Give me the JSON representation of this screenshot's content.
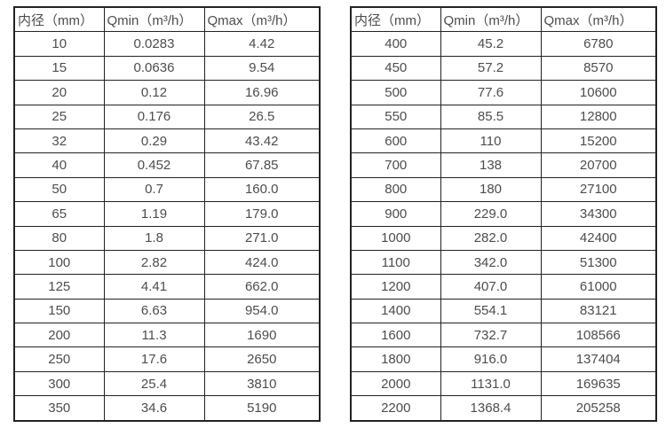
{
  "page": {
    "background": "#ffffff",
    "text_color": "#4d4d4d",
    "border_color": "#222222"
  },
  "tables": [
    {
      "name": "flow-spec-table-small-diameters",
      "headers": [
        "内径（mm）",
        "Qmin（m³/h）",
        "Qmax（m³/h）"
      ],
      "rows": [
        [
          "10",
          "0.0283",
          "4.42"
        ],
        [
          "15",
          "0.0636",
          "9.54"
        ],
        [
          "20",
          "0.12",
          "16.96"
        ],
        [
          "25",
          "0.176",
          "26.5"
        ],
        [
          "32",
          "0.29",
          "43.42"
        ],
        [
          "40",
          "0.452",
          "67.85"
        ],
        [
          "50",
          "0.7",
          "160.0"
        ],
        [
          "65",
          "1.19",
          "179.0"
        ],
        [
          "80",
          "1.8",
          "271.0"
        ],
        [
          "100",
          "2.82",
          "424.0"
        ],
        [
          "125",
          "4.41",
          "662.0"
        ],
        [
          "150",
          "6.63",
          "954.0"
        ],
        [
          "200",
          "11.3",
          "1690"
        ],
        [
          "250",
          "17.6",
          "2650"
        ],
        [
          "300",
          "25.4",
          "3810"
        ],
        [
          "350",
          "34.6",
          "5190"
        ]
      ]
    },
    {
      "name": "flow-spec-table-large-diameters",
      "headers": [
        "内径（mm）",
        "Qmin（m³/h）",
        "Qmax（m³/h）"
      ],
      "rows": [
        [
          "400",
          "45.2",
          "6780"
        ],
        [
          "450",
          "57.2",
          "8570"
        ],
        [
          "500",
          "77.6",
          "10600"
        ],
        [
          "550",
          "85.5",
          "12800"
        ],
        [
          "600",
          "110",
          "15200"
        ],
        [
          "700",
          "138",
          "20700"
        ],
        [
          "800",
          "180",
          "27100"
        ],
        [
          "900",
          "229.0",
          "34300"
        ],
        [
          "1000",
          "282.0",
          "42400"
        ],
        [
          "1100",
          "342.0",
          "51300"
        ],
        [
          "1200",
          "407.0",
          "61000"
        ],
        [
          "1400",
          "554.1",
          "83121"
        ],
        [
          "1600",
          "732.7",
          "108566"
        ],
        [
          "1800",
          "916.0",
          "137404"
        ],
        [
          "2000",
          "1131.0",
          "169635"
        ],
        [
          "2200",
          "1368.4",
          "205258"
        ]
      ]
    }
  ],
  "chart_data": [
    {
      "type": "table",
      "title": "Flow range by inner diameter (10–350 mm)",
      "columns": [
        "内径（mm）",
        "Qmin（m³/h）",
        "Qmax（m³/h）"
      ],
      "rows": [
        [
          10,
          0.0283,
          4.42
        ],
        [
          15,
          0.0636,
          9.54
        ],
        [
          20,
          0.12,
          16.96
        ],
        [
          25,
          0.176,
          26.5
        ],
        [
          32,
          0.29,
          43.42
        ],
        [
          40,
          0.452,
          67.85
        ],
        [
          50,
          0.7,
          160.0
        ],
        [
          65,
          1.19,
          179.0
        ],
        [
          80,
          1.8,
          271.0
        ],
        [
          100,
          2.82,
          424.0
        ],
        [
          125,
          4.41,
          662.0
        ],
        [
          150,
          6.63,
          954.0
        ],
        [
          200,
          11.3,
          1690
        ],
        [
          250,
          17.6,
          2650
        ],
        [
          300,
          25.4,
          3810
        ],
        [
          350,
          34.6,
          5190
        ]
      ]
    },
    {
      "type": "table",
      "title": "Flow range by inner diameter (400–2200 mm)",
      "columns": [
        "内径（mm）",
        "Qmin（m³/h）",
        "Qmax（m³/h）"
      ],
      "rows": [
        [
          400,
          45.2,
          6780
        ],
        [
          450,
          57.2,
          8570
        ],
        [
          500,
          77.6,
          10600
        ],
        [
          550,
          85.5,
          12800
        ],
        [
          600,
          110,
          15200
        ],
        [
          700,
          138,
          20700
        ],
        [
          800,
          180,
          27100
        ],
        [
          900,
          229.0,
          34300
        ],
        [
          1000,
          282.0,
          42400
        ],
        [
          1100,
          342.0,
          51300
        ],
        [
          1200,
          407.0,
          61000
        ],
        [
          1400,
          554.1,
          83121
        ],
        [
          1600,
          732.7,
          108566
        ],
        [
          1800,
          916.0,
          137404
        ],
        [
          2000,
          1131.0,
          169635
        ],
        [
          2200,
          1368.4,
          205258
        ]
      ]
    }
  ]
}
